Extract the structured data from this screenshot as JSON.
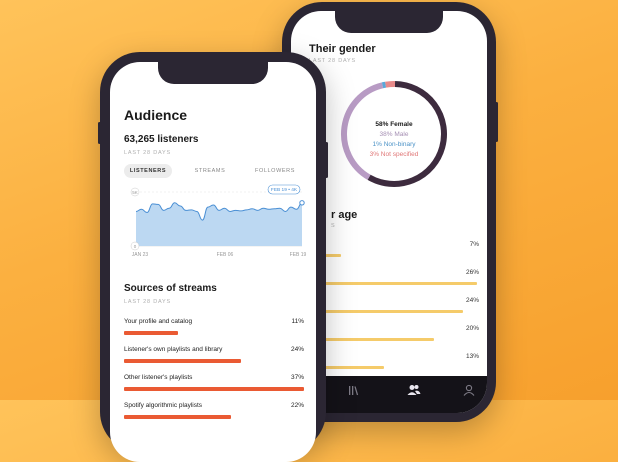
{
  "gender": {
    "title": "Their gender",
    "subtitle": "LAST 28 DAYS",
    "legend": [
      {
        "text": "58% Female",
        "value": 58,
        "color": "#3d2b3e"
      },
      {
        "text": "38% Male",
        "value": 38,
        "color": "#b89bc4"
      },
      {
        "text": "1% Non-binary",
        "value": 1,
        "color": "#5aa7d8"
      },
      {
        "text": "3% Not specified",
        "value": 3,
        "color": "#e88a8a"
      }
    ]
  },
  "age": {
    "title": "r age",
    "subtitle": "S",
    "rows": [
      {
        "pct": "7%",
        "value": 7
      },
      {
        "pct": "26%",
        "value": 26
      },
      {
        "pct": "24%",
        "value": 24
      },
      {
        "pct": "20%",
        "value": 20
      },
      {
        "pct": "13%",
        "value": 13
      }
    ],
    "bar_color": "#f5cb6a"
  },
  "bottom_nav": {
    "icons": [
      "library-icon",
      "audience-icon",
      "profile-icon"
    ]
  },
  "audience": {
    "title": "Audience",
    "listeners_title": "63,265 listeners",
    "listeners_subtitle": "LAST 28 DAYS",
    "tabs": [
      "LISTENERS",
      "STREAMS",
      "FOLLOWERS"
    ],
    "active_tab": 0
  },
  "chart_data": {
    "type": "area",
    "x_labels": [
      "JAN 23",
      "FEB 06",
      "FEB 19"
    ],
    "y_labels": [
      "5K",
      "0"
    ],
    "annotation": "FEB 19 • 4K",
    "ylim": [
      0,
      5000
    ],
    "values": [
      3200,
      3400,
      3100,
      3900,
      3850,
      3300,
      3500,
      4000,
      3700,
      3300,
      3350,
      3200,
      2400,
      3600,
      3800,
      3300,
      3500,
      3200,
      3300,
      3250,
      3350,
      3450,
      3300,
      3500,
      3400,
      3450,
      3500,
      3200,
      3600,
      3400,
      4000
    ],
    "fill": "#bcd8f2",
    "line": "#4a8fd4"
  },
  "sources": {
    "title": "Sources of streams",
    "subtitle": "LAST 28 DAYS",
    "bar_color": "#ea5a33",
    "rows": [
      {
        "label": "Your profile and catalog",
        "pct": "11%",
        "value": 11
      },
      {
        "label": "Listener's own playlists and library",
        "pct": "24%",
        "value": 24
      },
      {
        "label": "Other listener's playlists",
        "pct": "37%",
        "value": 37
      },
      {
        "label": "Spotify algorithmic playlists",
        "pct": "22%",
        "value": 22
      }
    ]
  }
}
